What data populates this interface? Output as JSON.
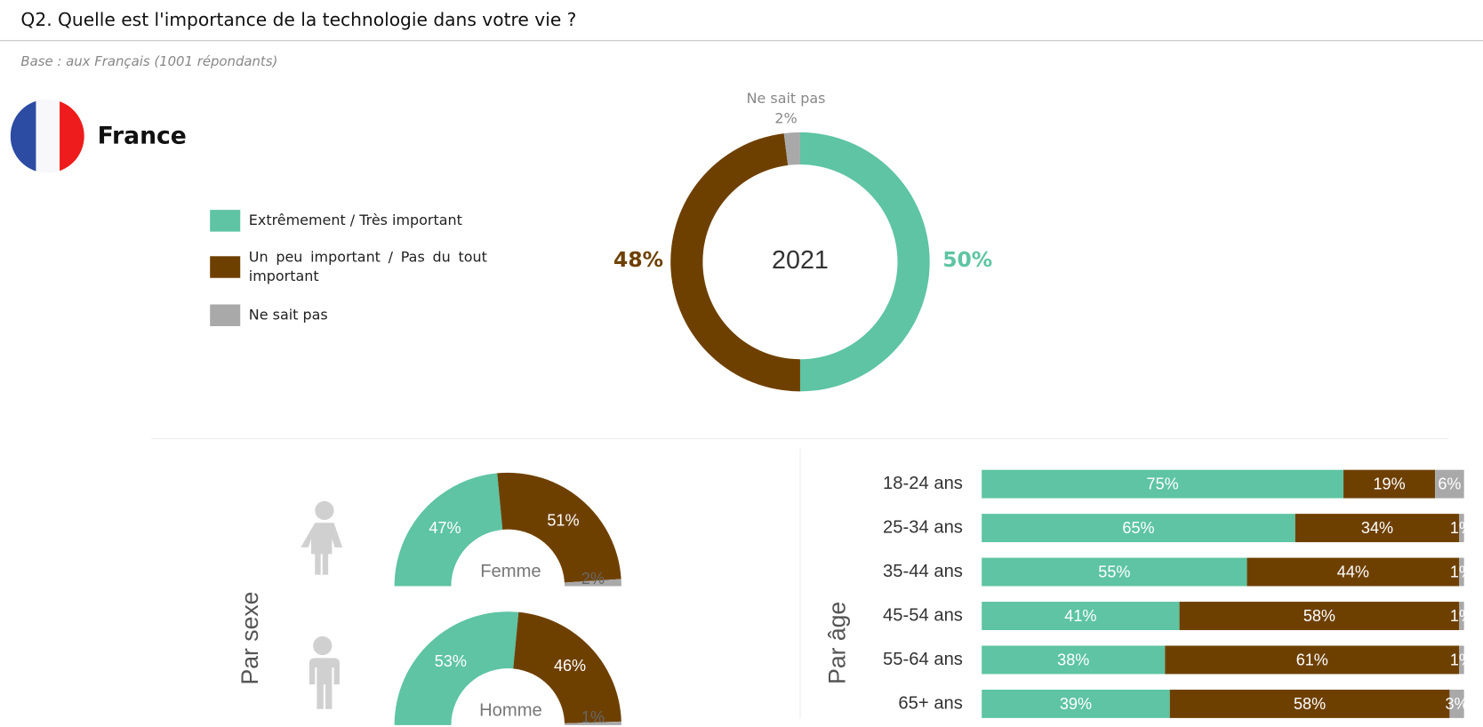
{
  "header": {
    "title": "Q2. Quelle est l'importance de la technologie dans votre vie ?",
    "base": "Base : aux Français (1001 répondants)",
    "country": "France"
  },
  "chart_data": [
    {
      "type": "pie",
      "donut": true,
      "center_label": "2021",
      "categories": [
        "Extrêmement / Très important",
        "Un peu important / Pas du tout important",
        "Ne sait pas"
      ],
      "values": [
        50,
        48,
        2
      ],
      "value_labels": [
        "50%",
        "48%",
        "2%"
      ],
      "colors": [
        "#5ec4a3",
        "#6e4000",
        "#a9a9a9"
      ]
    },
    {
      "type": "half-pie",
      "label": "Par sexe",
      "colors": [
        "#5ec4a3",
        "#6e4000",
        "#a9a9a9"
      ],
      "series": [
        {
          "name": "Femme",
          "values": [
            47,
            51,
            2
          ],
          "value_labels": [
            "47%",
            "51%",
            "2%"
          ]
        },
        {
          "name": "Homme",
          "values": [
            53,
            46,
            1
          ],
          "value_labels": [
            "53%",
            "46%",
            "1%"
          ]
        }
      ]
    },
    {
      "type": "stacked-bar",
      "label": "Par âge",
      "orientation": "horizontal",
      "xlim": [
        0,
        100
      ],
      "categories": [
        "18-24 ans",
        "25-34 ans",
        "35-44 ans",
        "45-54 ans",
        "55-64 ans",
        "65+ ans"
      ],
      "series": [
        {
          "color": "#5ec4a3",
          "values": [
            75,
            65,
            55,
            41,
            38,
            39
          ],
          "value_labels": [
            "75%",
            "65%",
            "55%",
            "41%",
            "38%",
            "39%"
          ]
        },
        {
          "color": "#6e4000",
          "values": [
            19,
            34,
            44,
            58,
            61,
            58
          ],
          "value_labels": [
            "19%",
            "34%",
            "44%",
            "58%",
            "61%",
            "58%"
          ]
        },
        {
          "color": "#a9a9a9",
          "values": [
            6,
            1,
            1,
            1,
            1,
            3
          ],
          "value_labels": [
            "6%",
            "1%",
            "1%",
            "1%",
            "1%",
            "3%"
          ]
        }
      ]
    }
  ]
}
